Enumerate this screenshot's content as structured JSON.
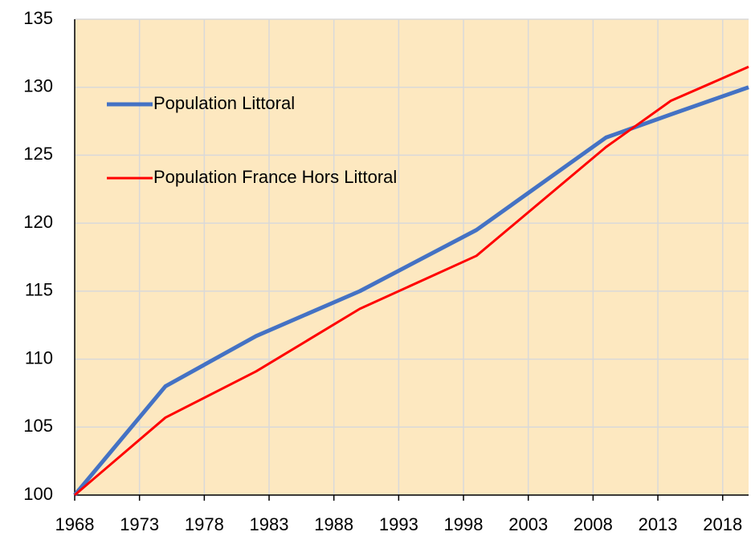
{
  "chart_data": {
    "type": "line",
    "x": [
      1968,
      1975,
      1982,
      1990,
      1999,
      2009,
      2014,
      2020
    ],
    "series": [
      {
        "name": "Population Littoral",
        "color": "#4472c4",
        "values": [
          100,
          108.0,
          111.7,
          115.0,
          119.5,
          126.3,
          128.0,
          130.0
        ]
      },
      {
        "name": "Population France Hors Littoral",
        "color": "#ff0000",
        "values": [
          100,
          105.7,
          109.1,
          113.7,
          117.6,
          125.6,
          129.0,
          131.5
        ]
      }
    ],
    "xlim": [
      1968,
      2020
    ],
    "xticks": [
      1968,
      1973,
      1978,
      1983,
      1988,
      1993,
      1998,
      2003,
      2008,
      2013,
      2018
    ],
    "ylim": [
      100,
      135
    ],
    "yticks": [
      100,
      105,
      110,
      115,
      120,
      125,
      130,
      135
    ],
    "grid": true,
    "legend": "upper left",
    "background": "#fde8c0"
  }
}
